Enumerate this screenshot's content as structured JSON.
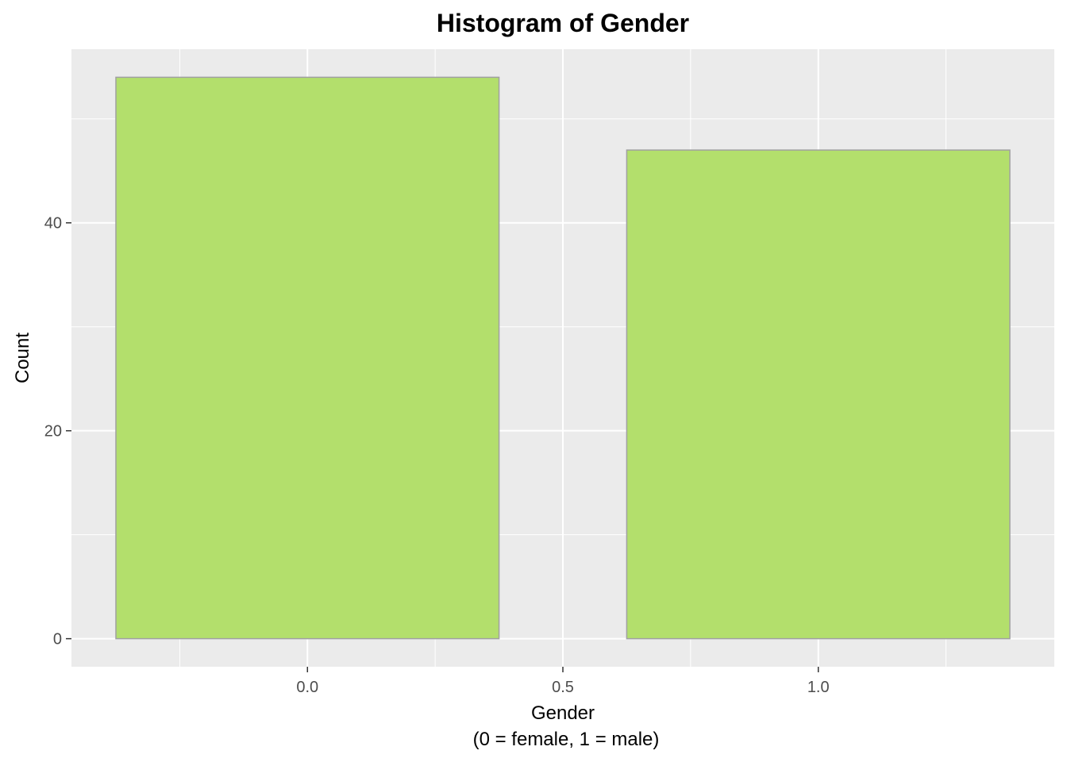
{
  "chart_data": {
    "type": "bar",
    "title": "Histogram of Gender",
    "xlabel_line1": "Gender",
    "xlabel_line2": "(0 = female, 1 = male)",
    "ylabel": "Count",
    "x": [
      0,
      1
    ],
    "values": [
      54,
      47
    ],
    "bar_width": 0.75,
    "xlim": [
      -0.462,
      1.462
    ],
    "ylim": [
      -2.7,
      56.7
    ],
    "x_ticks": [
      0.0,
      0.5,
      1.0
    ],
    "x_tick_labels": [
      "0.0",
      "0.5",
      "1.0"
    ],
    "y_ticks": [
      0,
      20,
      40
    ],
    "y_tick_labels": [
      "0",
      "20",
      "40"
    ],
    "x_minor_ticks": [
      -0.25,
      0.25,
      0.75,
      1.25
    ],
    "y_minor_ticks": [
      10,
      30,
      50
    ],
    "grid": true,
    "legend": "none",
    "colors": {
      "bar_fill": "#b3df6c",
      "bar_outline": "#a0a0a0",
      "panel_background": "#ebebeb",
      "grid": "#ffffff"
    }
  }
}
